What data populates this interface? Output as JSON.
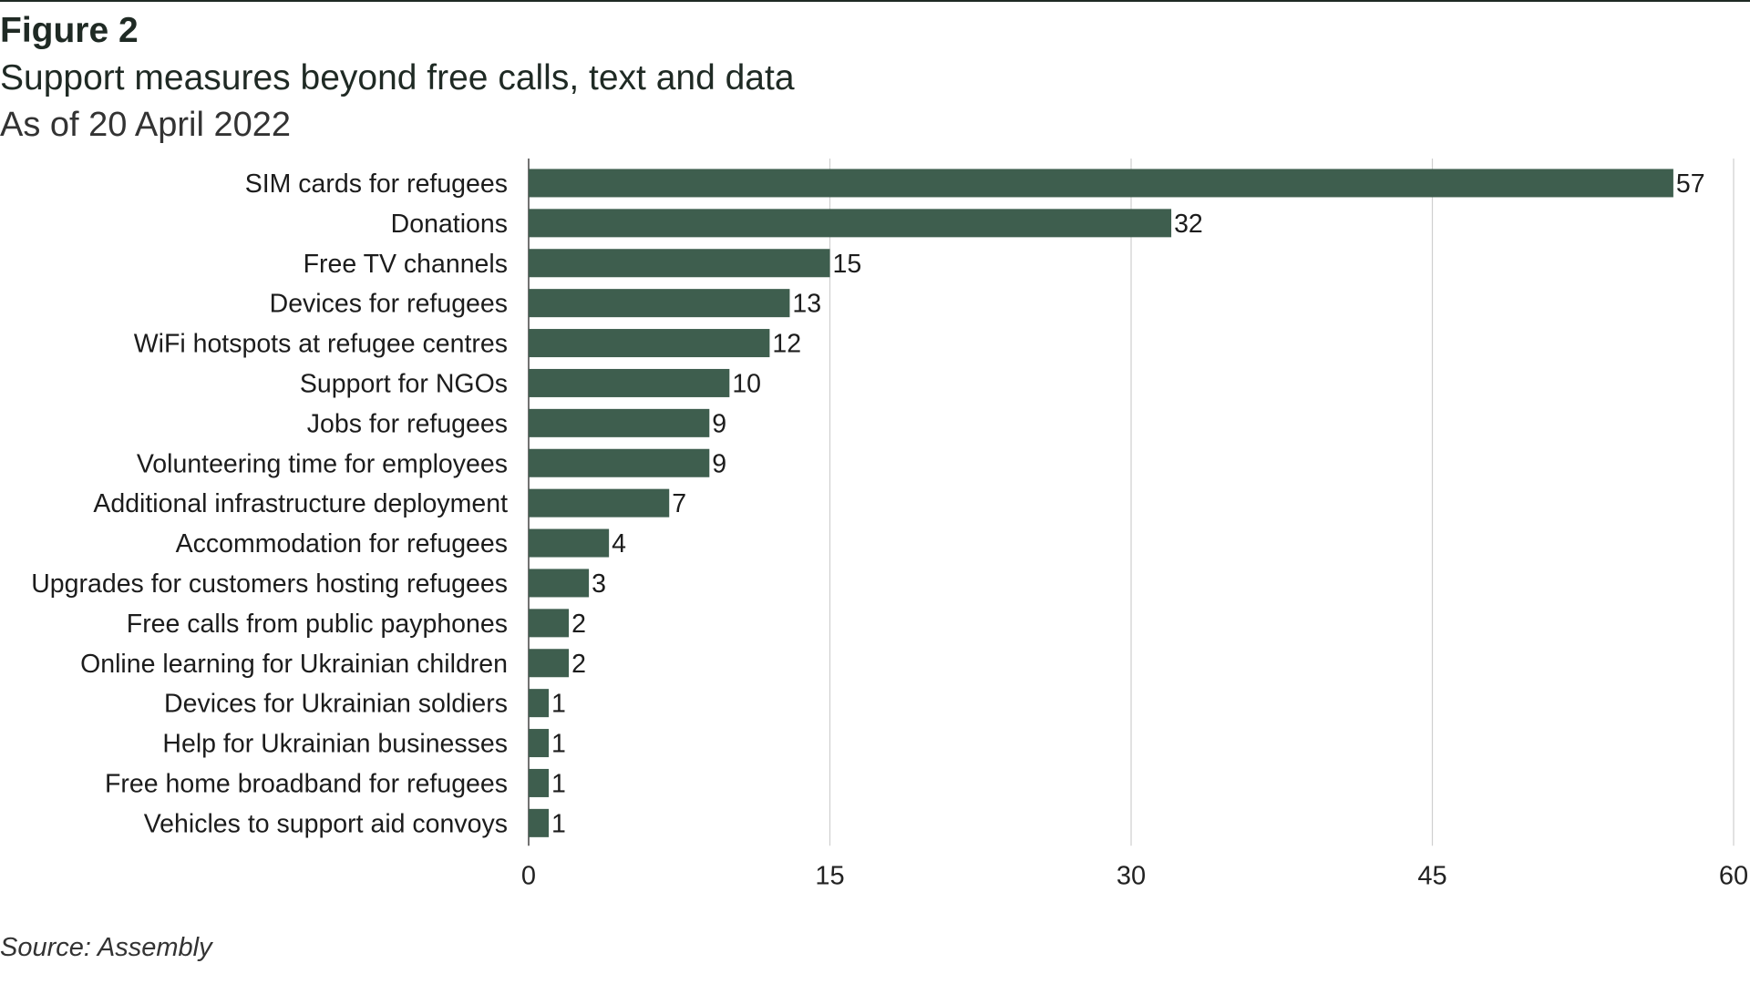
{
  "figure_label": "Figure 2",
  "title": "Support measures beyond free calls, text and data",
  "subtitle": "As of 20 April 2022",
  "source": "Source: Assembly",
  "colors": {
    "bar": "#3e5e4e",
    "grid": "#cfcfcf",
    "text": "#1f2a24"
  },
  "chart_data": {
    "type": "bar",
    "orientation": "horizontal",
    "categories": [
      "SIM cards for refugees",
      "Donations",
      "Free TV channels",
      "Devices for refugees",
      "WiFi hotspots at refugee centres",
      "Support for NGOs",
      "Jobs for refugees",
      "Volunteering time for employees",
      "Additional infrastructure deployment",
      "Accommodation for refugees",
      "Upgrades for customers hosting refugees",
      "Free calls from public payphones",
      "Online learning for Ukrainian children",
      "Devices for Ukrainian soldiers",
      "Help for Ukrainian businesses",
      "Free home broadband for refugees",
      "Vehicles to support aid convoys"
    ],
    "values": [
      57,
      32,
      15,
      13,
      12,
      10,
      9,
      9,
      7,
      4,
      3,
      2,
      2,
      1,
      1,
      1,
      1
    ],
    "xlim": [
      0,
      60
    ],
    "xticks": [
      0,
      15,
      30,
      45,
      60
    ],
    "grid": true,
    "data_labels": true,
    "legend": "none"
  }
}
